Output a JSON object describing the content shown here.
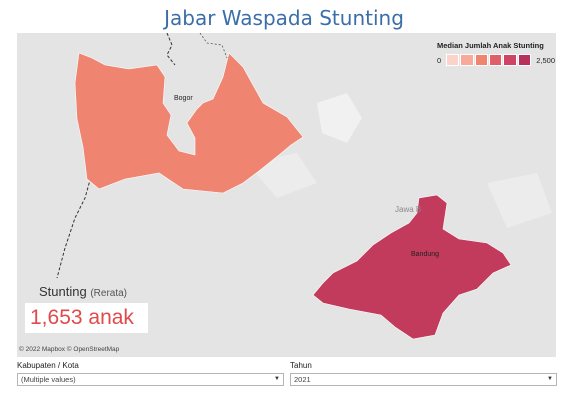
{
  "title": "Jabar Waspada Stunting",
  "legend": {
    "title": "Median Jumlah Anak Stunting",
    "min_label": "0",
    "max_label": "2,500",
    "colors": [
      "#fbd3cb",
      "#f7a99a",
      "#ef8471",
      "#e0606a",
      "#cf4465",
      "#b83158"
    ]
  },
  "map": {
    "regions": [
      {
        "name": "Bogor",
        "color": "#ef8471"
      },
      {
        "name": "Bandung",
        "color": "#c23a5c"
      }
    ],
    "place_label": "Jawa B",
    "attribution": "© 2022 Mapbox © OpenStreetMap"
  },
  "kpi": {
    "label": "Stunting",
    "sublabel": "(Rerata)",
    "value": "1,653 anak"
  },
  "filters": [
    {
      "label": "Kabupaten / Kota",
      "value": "(Multiple values)"
    },
    {
      "label": "Tahun",
      "value": "2021"
    }
  ]
}
